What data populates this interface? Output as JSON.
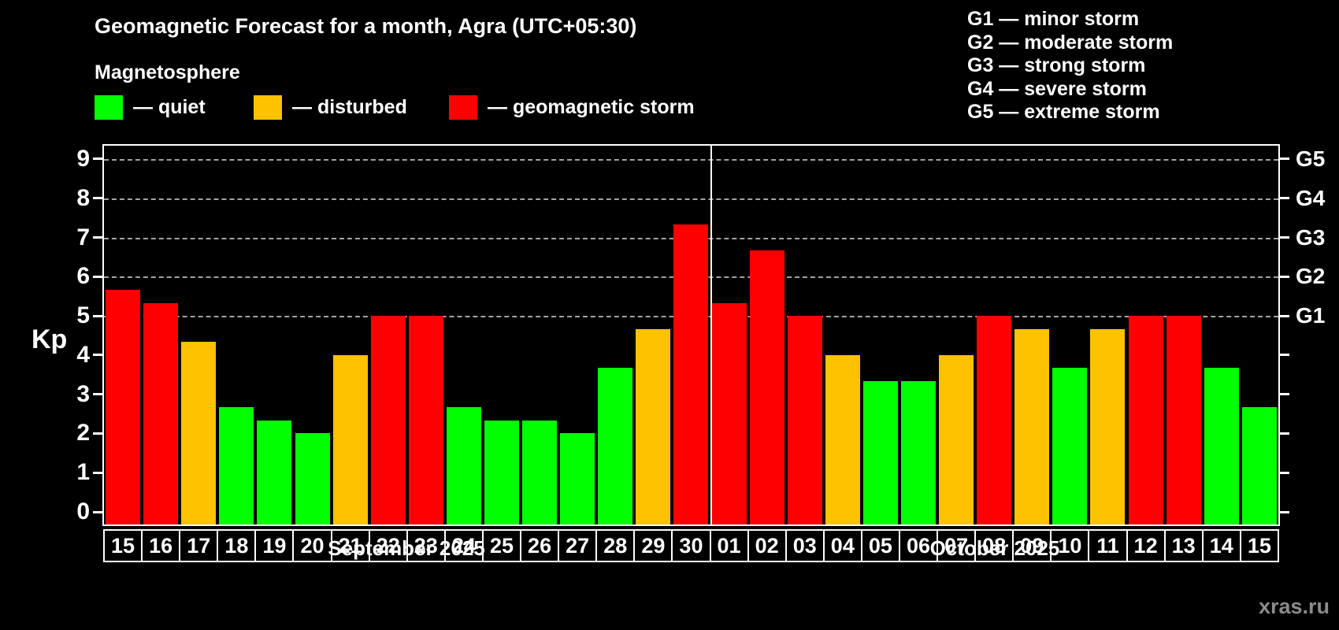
{
  "title": "Geomagnetic Forecast for a month, Agra (UTC+05:30)",
  "subtitle": "Magnetosphere",
  "legend": {
    "quiet": "— quiet",
    "disturbed": "— disturbed",
    "storm": "— geomagnetic storm"
  },
  "g_legend": [
    "G1 — minor storm",
    "G2 — moderate storm",
    "G3 — strong storm",
    "G4 — severe storm",
    "G5 — extreme storm"
  ],
  "colors": {
    "quiet": "#00ff00",
    "disturbed": "#ffc200",
    "storm": "#ff0000",
    "axis": "#ffffff",
    "grid": "#a3a3a3",
    "background": "#000000",
    "watermark_gray": "#8c8c8c"
  },
  "y_axis": {
    "label": "Kp",
    "ticks": [
      0,
      1,
      2,
      3,
      4,
      5,
      6,
      7,
      8,
      9
    ]
  },
  "right_axis": {
    "labels": {
      "5": "G1",
      "6": "G2",
      "7": "G3",
      "8": "G4",
      "9": "G5"
    }
  },
  "months": [
    {
      "label": "September 2025",
      "count": 16
    },
    {
      "label": "October 2025",
      "count": 15
    }
  ],
  "watermark": "xras.ru",
  "chart_data": {
    "type": "bar",
    "title": "Geomagnetic Forecast for a month, Agra (UTC+05:30)",
    "xlabel": "",
    "ylabel": "Kp",
    "ylim": [
      0,
      9
    ],
    "grid": "horizontal dashed lines at Kp 5,6,7,8,9 (G1–G5)",
    "legend_position": "top-left",
    "categories": [
      "15",
      "16",
      "17",
      "18",
      "19",
      "20",
      "21",
      "22",
      "23",
      "24",
      "25",
      "26",
      "27",
      "28",
      "29",
      "30",
      "01",
      "02",
      "03",
      "04",
      "05",
      "06",
      "07",
      "08",
      "09",
      "10",
      "11",
      "12",
      "13",
      "14",
      "15"
    ],
    "month_of_category": [
      "Sep",
      "Sep",
      "Sep",
      "Sep",
      "Sep",
      "Sep",
      "Sep",
      "Sep",
      "Sep",
      "Sep",
      "Sep",
      "Sep",
      "Sep",
      "Sep",
      "Sep",
      "Sep",
      "Oct",
      "Oct",
      "Oct",
      "Oct",
      "Oct",
      "Oct",
      "Oct",
      "Oct",
      "Oct",
      "Oct",
      "Oct",
      "Oct",
      "Oct",
      "Oct",
      "Oct"
    ],
    "values": [
      5.67,
      5.33,
      4.33,
      2.67,
      2.33,
      2.0,
      4.0,
      5.0,
      5.0,
      2.67,
      2.33,
      2.33,
      2.0,
      3.67,
      4.67,
      7.33,
      5.33,
      6.67,
      5.0,
      4.0,
      3.33,
      3.33,
      4.0,
      5.0,
      4.67,
      3.67,
      4.67,
      5.0,
      5.0,
      3.67,
      2.67
    ],
    "statuses": [
      "storm",
      "storm",
      "disturbed",
      "quiet",
      "quiet",
      "quiet",
      "disturbed",
      "storm",
      "storm",
      "quiet",
      "quiet",
      "quiet",
      "quiet",
      "quiet",
      "disturbed",
      "storm",
      "storm",
      "storm",
      "storm",
      "disturbed",
      "quiet",
      "quiet",
      "disturbed",
      "storm",
      "disturbed",
      "quiet",
      "disturbed",
      "storm",
      "storm",
      "quiet",
      "quiet"
    ],
    "right_axis_ticks": {
      "G1": 5,
      "G2": 6,
      "G3": 7,
      "G4": 8,
      "G5": 9
    }
  }
}
